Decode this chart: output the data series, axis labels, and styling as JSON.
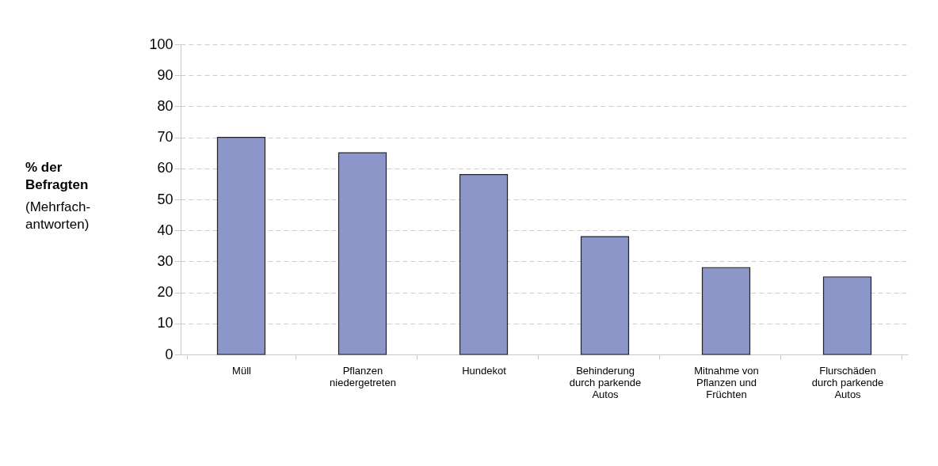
{
  "chart_data": {
    "type": "bar",
    "categories": [
      "Müll",
      "Pflanzen\nniedergetreten",
      "Hundekot",
      "Behinderung\ndurch parkende\nAutos",
      "Mitnahme von\nPflanzen und\nFrüchten",
      "Flurschäden\ndurch parkende\nAutos"
    ],
    "values": [
      70,
      65,
      58,
      38,
      28,
      25
    ],
    "color": "#8c96c8",
    "ylabel": "% der\nBefragten",
    "annotations": [
      "(Mehrfach-\nantworten)"
    ],
    "ylim": [
      0,
      100
    ],
    "yticks": [
      0,
      10,
      20,
      30,
      40,
      50,
      60,
      70,
      80,
      90,
      100
    ],
    "grid": "y"
  }
}
